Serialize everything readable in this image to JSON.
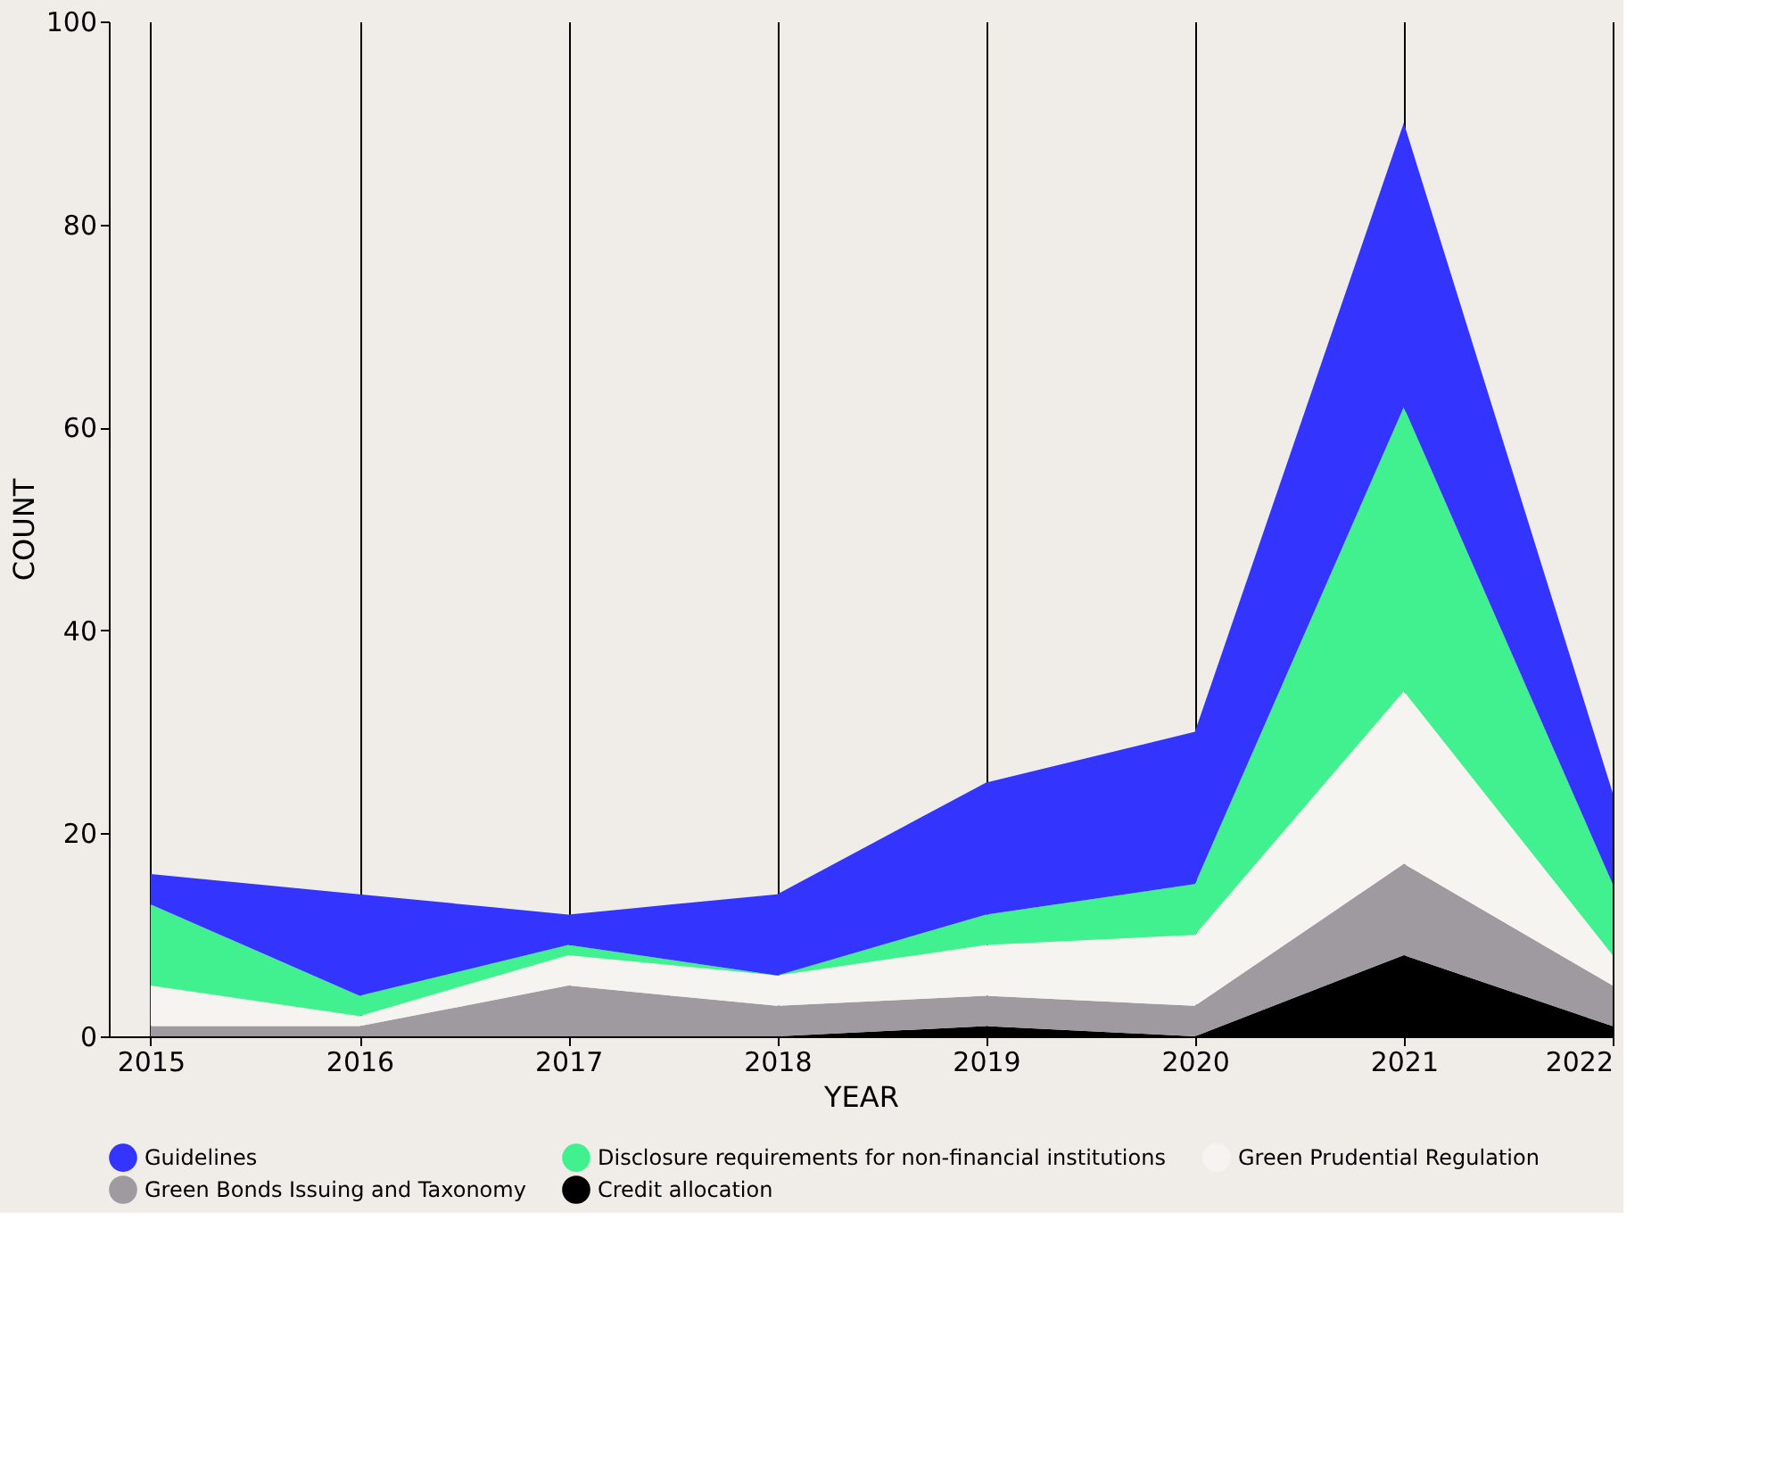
{
  "chart_data": {
    "type": "area",
    "stacked": true,
    "xlabel": "YEAR",
    "ylabel": "COUNT",
    "x": [
      2015,
      2016,
      2017,
      2018,
      2019,
      2020,
      2021,
      2022
    ],
    "xlim": [
      2014.8,
      2022
    ],
    "xticks": [
      2015,
      2016,
      2017,
      2018,
      2019,
      2020,
      2021,
      2022
    ],
    "ylim": [
      0,
      100
    ],
    "yticks": [
      0,
      20,
      40,
      60,
      80,
      100
    ],
    "grid": "x",
    "legend": "bottom",
    "series": [
      {
        "name": "Credit allocation",
        "color": "#000000",
        "values": [
          0,
          0,
          0,
          0,
          1,
          0,
          8,
          1
        ]
      },
      {
        "name": "Green Bonds Issuing and Taxonomy",
        "color": "#9e9a9f",
        "values": [
          1,
          1,
          5,
          3,
          3,
          3,
          9,
          4
        ]
      },
      {
        "name": "Green Prudential Regulation",
        "color": "#f6f4f0",
        "values": [
          4,
          1,
          3,
          3,
          5,
          7,
          17,
          3
        ]
      },
      {
        "name": "Disclosure requirements for non-financial institutions",
        "color": "#41f08f",
        "values": [
          8,
          2,
          1,
          0,
          3,
          5,
          28,
          7
        ]
      },
      {
        "name": "Guidelines",
        "color": "#3434ff",
        "values": [
          3,
          10,
          3,
          8,
          13,
          15,
          28,
          9
        ]
      }
    ]
  }
}
